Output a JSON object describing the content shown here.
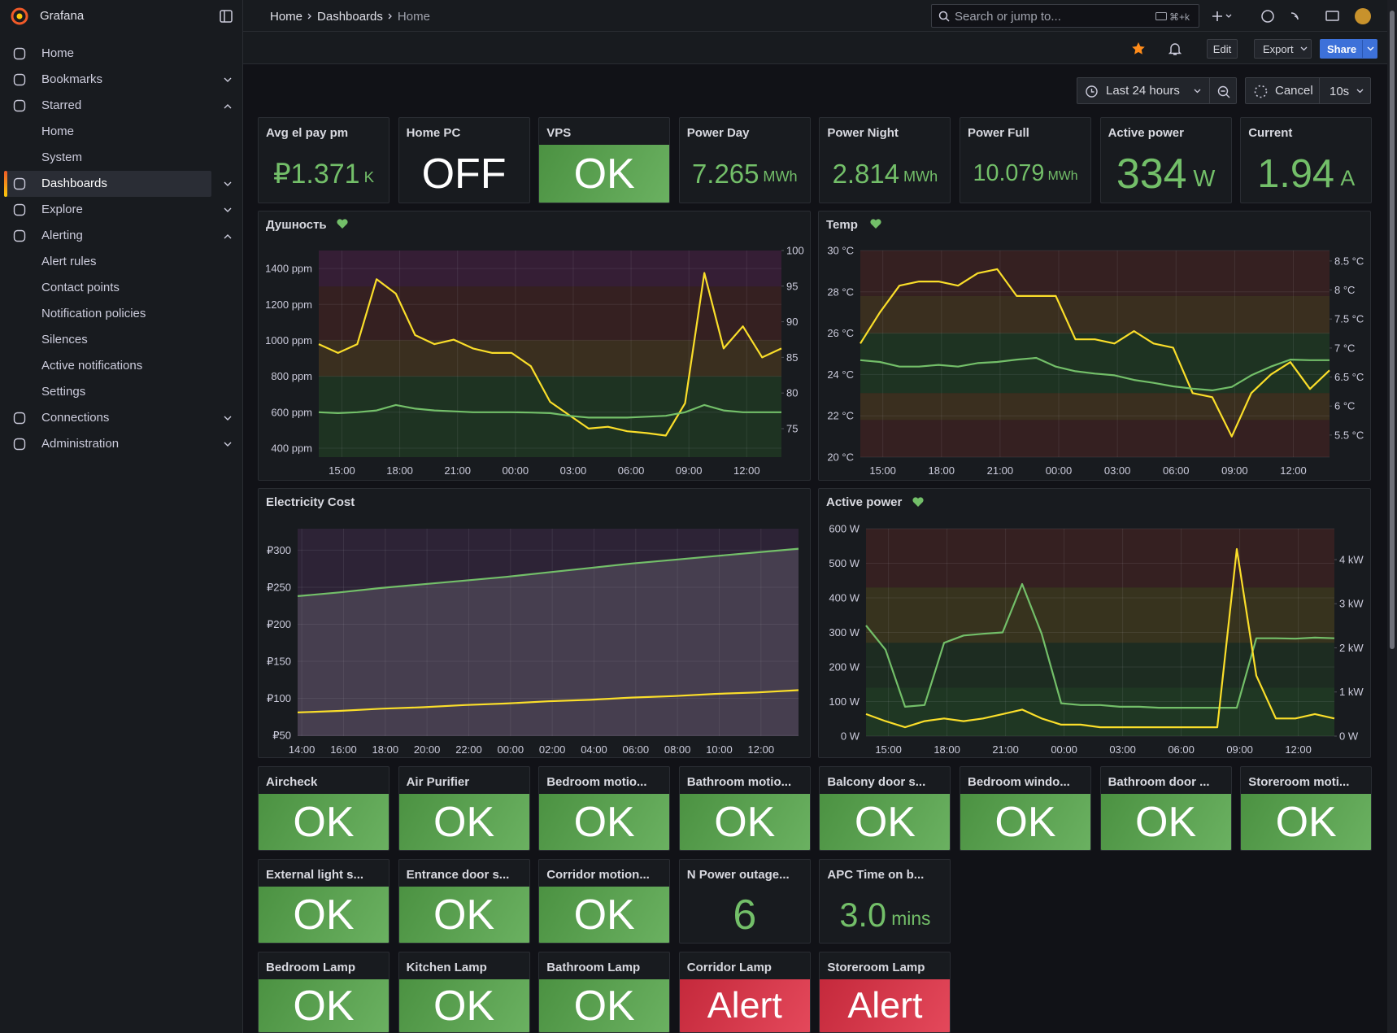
{
  "sidebar": {
    "brand": "Grafana",
    "items": [
      {
        "label": "Home"
      },
      {
        "label": "Bookmarks",
        "expanded": false
      },
      {
        "label": "Starred",
        "expanded": true,
        "children": [
          "Home",
          "System"
        ]
      },
      {
        "label": "Dashboards",
        "expanded": false,
        "active": true
      },
      {
        "label": "Explore",
        "expanded": false
      },
      {
        "label": "Alerting",
        "expanded": true,
        "children": [
          "Alert rules",
          "Contact points",
          "Notification policies",
          "Silences",
          "Active notifications",
          "Settings"
        ]
      },
      {
        "label": "Connections",
        "expanded": false
      },
      {
        "label": "Administration",
        "expanded": false
      }
    ]
  },
  "breadcrumbs": [
    "Home",
    "Dashboards",
    "Home"
  ],
  "search": {
    "placeholder": "Search or jump to...",
    "shortcut": "⌘+k"
  },
  "toolbar": {
    "buttons": [
      "Edit",
      "Export",
      "Share"
    ],
    "time_range": "Last 24 hours",
    "cancel": "Cancel",
    "refresh": "10s"
  },
  "stat_rows": [
    [
      {
        "title": "Avg el pay pm",
        "value": "₽1.371",
        "unit": "K",
        "color": "#73bf69"
      },
      {
        "title": "Home PC",
        "value": "OFF",
        "color": "#ffffff"
      },
      {
        "title": "VPS",
        "value": "OK",
        "background": "#56a64b"
      },
      {
        "title": "Power Day",
        "value": "7.265",
        "unit": "MWh",
        "color": "#73bf69"
      },
      {
        "title": "Power Night",
        "value": "2.814",
        "unit": "MWh",
        "color": "#73bf69"
      },
      {
        "title": "Power Full",
        "value": "10.079",
        "unit": "MWh",
        "color": "#73bf69"
      },
      {
        "title": "Active power",
        "value": "334",
        "unit": "W",
        "color": "#73bf69"
      },
      {
        "title": "Current",
        "value": "1.94",
        "unit": "A",
        "color": "#73bf69"
      }
    ],
    [
      {
        "title": "Aircheck",
        "value": "OK",
        "background": "#56a64b"
      },
      {
        "title": "Air Purifier",
        "value": "OK",
        "background": "#56a64b"
      },
      {
        "title": "Bedroom motio...",
        "value": "OK",
        "background": "#56a64b"
      },
      {
        "title": "Bathroom motio...",
        "value": "OK",
        "background": "#56a64b"
      },
      {
        "title": "Balcony door s...",
        "value": "OK",
        "background": "#56a64b"
      },
      {
        "title": "Bedroom windo...",
        "value": "OK",
        "background": "#56a64b"
      },
      {
        "title": "Bathroom door ...",
        "value": "OK",
        "background": "#56a64b"
      },
      {
        "title": "Storeroom moti...",
        "value": "OK",
        "background": "#56a64b"
      }
    ],
    [
      {
        "title": "External light s...",
        "value": "OK",
        "background": "#56a64b"
      },
      {
        "title": "Entrance door s...",
        "value": "OK",
        "background": "#56a64b"
      },
      {
        "title": "Corridor motion...",
        "value": "OK",
        "background": "#56a64b"
      },
      {
        "title": "N Power outage...",
        "value": "6",
        "color": "#73bf69"
      },
      {
        "title": "APC Time on b...",
        "value": "3.0",
        "unit": "mins",
        "color": "#73bf69"
      }
    ],
    [
      {
        "title": "Bedroom Lamp",
        "value": "OK",
        "background": "#56a64b"
      },
      {
        "title": "Kitchen Lamp",
        "value": "OK",
        "background": "#56a64b"
      },
      {
        "title": "Bathroom Lamp",
        "value": "OK",
        "background": "#56a64b"
      },
      {
        "title": "Corridor Lamp",
        "value": "Alert",
        "background": "#e02f44"
      },
      {
        "title": "Storeroom Lamp",
        "value": "Alert",
        "background": "#e02f44"
      }
    ]
  ],
  "chart_data": [
    {
      "type": "line",
      "title": "Душность",
      "x": [
        0,
        1,
        2,
        3,
        4,
        5,
        6,
        7,
        8,
        9,
        10,
        11,
        12,
        13,
        14,
        15,
        16,
        17,
        18,
        19,
        20,
        21,
        22,
        23,
        24
      ],
      "xlim": [
        0,
        24
      ],
      "xticks": [
        {
          "value": 1.2,
          "label": "15:00"
        },
        {
          "value": 4.2,
          "label": "18:00"
        },
        {
          "value": 7.2,
          "label": "21:00"
        },
        {
          "value": 10.2,
          "label": "00:00"
        },
        {
          "value": 13.2,
          "label": "03:00"
        },
        {
          "value": 16.2,
          "label": "06:00"
        },
        {
          "value": 19.2,
          "label": "09:00"
        },
        {
          "value": 22.2,
          "label": "12:00"
        }
      ],
      "ylim": [
        350,
        1500
      ],
      "yticks": [
        {
          "value": 400,
          "label": "400 ppm"
        },
        {
          "value": 600,
          "label": "600 ppm"
        },
        {
          "value": 800,
          "label": "800 ppm"
        },
        {
          "value": 1000,
          "label": "1000 ppm"
        },
        {
          "value": 1200,
          "label": "1200 ppm"
        },
        {
          "value": 1400,
          "label": "1400 ppm"
        }
      ],
      "y2lim": [
        71,
        100
      ],
      "y2ticks": [
        75,
        80,
        85,
        90,
        95,
        100
      ],
      "bands": [
        {
          "from": 350,
          "to": 800,
          "color": "rgba(55,135,45,0.22)"
        },
        {
          "from": 800,
          "to": 1000,
          "color": "rgba(180,120,30,0.22)"
        },
        {
          "from": 1000,
          "to": 1300,
          "color": "rgba(160,50,40,0.22)"
        },
        {
          "from": 1300,
          "to": 1500,
          "color": "rgba(140,40,120,0.25)"
        }
      ],
      "grid": true,
      "series": [
        {
          "color": "#fade2a",
          "values": [
            979,
            930,
            979,
            1340,
            1260,
            1029,
            979,
            1004,
            955,
            930,
            930,
            856,
            658,
            583,
            509,
            519,
            494,
            484,
            470,
            650,
            1375,
            955,
            1078,
            905,
            955
          ]
        },
        {
          "color": "#73bf69",
          "values": [
            600,
            595,
            600,
            610,
            640,
            620,
            610,
            605,
            600,
            600,
            600,
            598,
            595,
            580,
            570,
            570,
            570,
            575,
            580,
            600,
            640,
            610,
            600,
            600,
            600
          ]
        }
      ]
    },
    {
      "type": "line",
      "title": "Temp",
      "x": [
        0,
        1,
        2,
        3,
        4,
        5,
        6,
        7,
        8,
        9,
        10,
        11,
        12,
        13,
        14,
        15,
        16,
        17,
        18,
        19,
        20,
        21,
        22,
        23,
        24
      ],
      "xlim": [
        0,
        24
      ],
      "xticks": [
        {
          "value": 1.15,
          "label": "15:00"
        },
        {
          "value": 4.15,
          "label": "18:00"
        },
        {
          "value": 7.15,
          "label": "21:00"
        },
        {
          "value": 10.15,
          "label": "00:00"
        },
        {
          "value": 13.15,
          "label": "03:00"
        },
        {
          "value": 16.15,
          "label": "06:00"
        },
        {
          "value": 19.15,
          "label": "09:00"
        },
        {
          "value": 22.15,
          "label": "12:00"
        }
      ],
      "ylim": [
        20,
        30
      ],
      "yticks": [
        {
          "value": 20,
          "label": "20 °C"
        },
        {
          "value": 22,
          "label": "22 °C"
        },
        {
          "value": 24,
          "label": "24 °C"
        },
        {
          "value": 26,
          "label": "26 °C"
        },
        {
          "value": 28,
          "label": "28 °C"
        },
        {
          "value": 30,
          "label": "30 °C"
        }
      ],
      "y2lim": [
        5.12,
        8.68
      ],
      "y2ticks": [
        {
          "value": 5.5,
          "label": "5.5 °C"
        },
        {
          "value": 6,
          "label": "6 °C"
        },
        {
          "value": 6.5,
          "label": "6.5 °C"
        },
        {
          "value": 7,
          "label": "7 °C"
        },
        {
          "value": 7.5,
          "label": "7.5 °C"
        },
        {
          "value": 8,
          "label": "8 °C"
        },
        {
          "value": 8.5,
          "label": "8.5 °C"
        }
      ],
      "bands": [
        {
          "from": 20,
          "to": 21.8,
          "color": "rgba(160,50,40,0.22)"
        },
        {
          "from": 21.8,
          "to": 23.1,
          "color": "rgba(180,120,30,0.22)"
        },
        {
          "from": 23.1,
          "to": 26,
          "color": "rgba(55,135,45,0.22)"
        },
        {
          "from": 26,
          "to": 27.8,
          "color": "rgba(180,120,30,0.22)"
        },
        {
          "from": 27.8,
          "to": 30,
          "color": "rgba(160,50,40,0.22)"
        }
      ],
      "grid": true,
      "series": [
        {
          "color": "#fade2a",
          "values": [
            25.5,
            27,
            28.3,
            28.5,
            28.5,
            28.3,
            28.9,
            29.1,
            27.8,
            27.8,
            27.8,
            25.7,
            25.7,
            25.5,
            26.1,
            25.5,
            25.3,
            23.1,
            22.9,
            21,
            23.1,
            24,
            24.6,
            23.3,
            24.2
          ]
        },
        {
          "color": "#73bf69",
          "axis": "y2",
          "values": [
            6.79,
            6.76,
            6.68,
            6.68,
            6.71,
            6.68,
            6.74,
            6.76,
            6.8,
            6.83,
            6.68,
            6.6,
            6.56,
            6.53,
            6.45,
            6.4,
            6.34,
            6.3,
            6.27,
            6.33,
            6.53,
            6.68,
            6.8,
            6.79,
            6.79
          ]
        }
      ]
    },
    {
      "type": "line",
      "title": "Electricity Cost",
      "x": [
        0,
        2,
        4,
        6,
        8,
        10,
        12,
        14,
        16,
        18,
        20,
        22,
        24
      ],
      "xlim": [
        0,
        24
      ],
      "xticks": [
        {
          "value": 0.2,
          "label": "14:00"
        },
        {
          "value": 2.2,
          "label": "16:00"
        },
        {
          "value": 4.2,
          "label": "18:00"
        },
        {
          "value": 6.2,
          "label": "20:00"
        },
        {
          "value": 8.2,
          "label": "22:00"
        },
        {
          "value": 10.2,
          "label": "00:00"
        },
        {
          "value": 12.2,
          "label": "02:00"
        },
        {
          "value": 14.2,
          "label": "04:00"
        },
        {
          "value": 16.2,
          "label": "06:00"
        },
        {
          "value": 18.2,
          "label": "08:00"
        },
        {
          "value": 20.2,
          "label": "10:00"
        },
        {
          "value": 22.2,
          "label": "12:00"
        }
      ],
      "ylim": [
        49,
        329
      ],
      "yticks": [
        {
          "value": 50,
          "label": "₽50"
        },
        {
          "value": 100,
          "label": "₽100"
        },
        {
          "value": 150,
          "label": "₽150"
        },
        {
          "value": 200,
          "label": "₽200"
        },
        {
          "value": 250,
          "label": "₽250"
        },
        {
          "value": 300,
          "label": "₽300"
        }
      ],
      "bands": [
        {
          "from": 49,
          "to": 329,
          "color": "rgba(130,70,150,0.2)"
        }
      ],
      "grid": true,
      "series": [
        {
          "color": "#73bf69",
          "fill": "rgba(160,160,170,0.22)",
          "values": [
            238,
            243,
            249,
            254,
            259,
            264,
            270,
            276,
            282,
            287,
            292,
            297,
            302
          ]
        },
        {
          "color": "#fade2a",
          "values": [
            81,
            83,
            86,
            88,
            91,
            93,
            96,
            98,
            101,
            103,
            106,
            108,
            111
          ]
        }
      ]
    },
    {
      "type": "line",
      "title": "Active power",
      "x": [
        0,
        1,
        2,
        3,
        4,
        5,
        6,
        7,
        8,
        9,
        10,
        11,
        12,
        13,
        14,
        15,
        16,
        17,
        18,
        19,
        20,
        21,
        22,
        23,
        24
      ],
      "xlim": [
        0,
        24
      ],
      "xticks": [
        {
          "value": 1.15,
          "label": "15:00"
        },
        {
          "value": 4.15,
          "label": "18:00"
        },
        {
          "value": 7.15,
          "label": "21:00"
        },
        {
          "value": 10.15,
          "label": "00:00"
        },
        {
          "value": 13.15,
          "label": "03:00"
        },
        {
          "value": 16.15,
          "label": "06:00"
        },
        {
          "value": 19.15,
          "label": "09:00"
        },
        {
          "value": 22.15,
          "label": "12:00"
        }
      ],
      "ylim": [
        0,
        600
      ],
      "yticks": [
        {
          "value": 0,
          "label": "0 W"
        },
        {
          "value": 100,
          "label": "100 W"
        },
        {
          "value": 200,
          "label": "200 W"
        },
        {
          "value": 300,
          "label": "300 W"
        },
        {
          "value": 400,
          "label": "400 W"
        },
        {
          "value": 500,
          "label": "500 W"
        },
        {
          "value": 600,
          "label": "600 W"
        }
      ],
      "y2lim": [
        0,
        4.7
      ],
      "y2ticks": [
        {
          "value": 0,
          "label": "0 W"
        },
        {
          "value": 1,
          "label": "1 kW"
        },
        {
          "value": 2,
          "label": "2 kW"
        },
        {
          "value": 3,
          "label": "3 kW"
        },
        {
          "value": 4,
          "label": "4 kW"
        }
      ],
      "bands": [
        {
          "from": 0,
          "to": 140,
          "color": "rgba(55,135,45,0.26)"
        },
        {
          "from": 140,
          "to": 270,
          "color": "rgba(55,135,45,0.16)"
        },
        {
          "from": 270,
          "to": 430,
          "color": "rgba(180,150,30,0.2)"
        },
        {
          "from": 430,
          "to": 600,
          "color": "rgba(160,50,40,0.22)"
        }
      ],
      "grid": true,
      "series": [
        {
          "color": "#73bf69",
          "values": [
            320,
            250,
            85,
            90,
            270,
            291,
            296,
            300,
            440,
            296,
            95,
            90,
            90,
            85,
            85,
            82,
            82,
            82,
            82,
            82,
            283,
            283,
            282,
            285,
            283
          ]
        },
        {
          "color": "#fade2a",
          "axis": "y2",
          "values": [
            0.5,
            0.34,
            0.2,
            0.34,
            0.4,
            0.34,
            0.4,
            0.5,
            0.6,
            0.4,
            0.26,
            0.26,
            0.2,
            0.2,
            0.2,
            0.2,
            0.2,
            0.2,
            0.2,
            4.24,
            1.37,
            0.4,
            0.4,
            0.5,
            0.4
          ]
        }
      ]
    }
  ]
}
